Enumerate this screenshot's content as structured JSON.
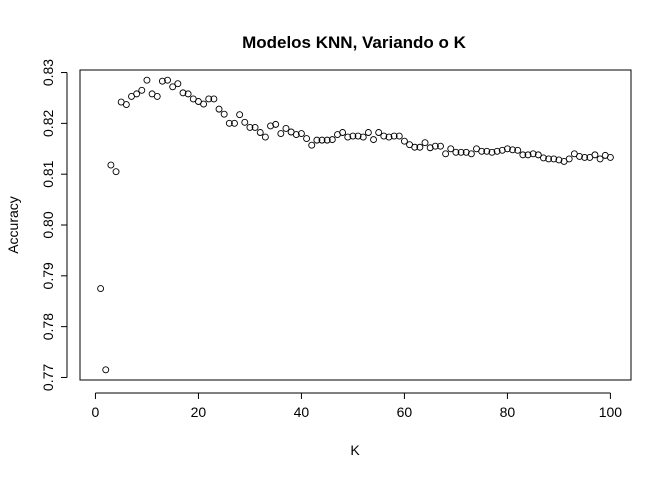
{
  "chart_data": {
    "type": "scatter",
    "title": "Modelos KNN, Variando o K",
    "xlabel": "K",
    "ylabel": "Accuracy",
    "xlim": [
      -3,
      104
    ],
    "ylim": [
      0.7695,
      0.8305
    ],
    "xticks": [
      0,
      20,
      40,
      60,
      80,
      100
    ],
    "yticks": [
      0.77,
      0.78,
      0.79,
      0.8,
      0.81,
      0.82,
      0.83
    ],
    "xtick_labels": [
      "0",
      "20",
      "40",
      "60",
      "80",
      "100"
    ],
    "ytick_labels": [
      "0.77",
      "0.78",
      "0.79",
      "0.80",
      "0.81",
      "0.82",
      "0.83"
    ],
    "grid": false,
    "marker": "open-circle",
    "x": [
      1,
      2,
      3,
      4,
      5,
      6,
      7,
      8,
      9,
      10,
      11,
      12,
      13,
      14,
      15,
      16,
      17,
      18,
      19,
      20,
      21,
      22,
      23,
      24,
      25,
      26,
      27,
      28,
      29,
      30,
      31,
      32,
      33,
      34,
      35,
      36,
      37,
      38,
      39,
      40,
      41,
      42,
      43,
      44,
      45,
      46,
      47,
      48,
      49,
      50,
      51,
      52,
      53,
      54,
      55,
      56,
      57,
      58,
      59,
      60,
      61,
      62,
      63,
      64,
      65,
      66,
      67,
      68,
      69,
      70,
      71,
      72,
      73,
      74,
      75,
      76,
      77,
      78,
      79,
      80,
      81,
      82,
      83,
      84,
      85,
      86,
      87,
      88,
      89,
      90,
      91,
      92,
      93,
      94,
      95,
      96,
      97,
      98,
      99,
      100
    ],
    "y": [
      0.7875,
      0.7715,
      0.8118,
      0.8105,
      0.8242,
      0.8237,
      0.8253,
      0.8258,
      0.8265,
      0.8285,
      0.8258,
      0.8253,
      0.8283,
      0.8285,
      0.8272,
      0.8278,
      0.826,
      0.8258,
      0.8248,
      0.8243,
      0.8238,
      0.8248,
      0.8248,
      0.8228,
      0.8218,
      0.82,
      0.82,
      0.8217,
      0.8202,
      0.8192,
      0.8192,
      0.8182,
      0.8173,
      0.8195,
      0.8198,
      0.818,
      0.819,
      0.8183,
      0.8178,
      0.818,
      0.817,
      0.8157,
      0.8167,
      0.8167,
      0.8167,
      0.8168,
      0.8178,
      0.8182,
      0.8173,
      0.8175,
      0.8175,
      0.8173,
      0.8182,
      0.8168,
      0.8182,
      0.8175,
      0.8173,
      0.8175,
      0.8175,
      0.8165,
      0.8158,
      0.8153,
      0.8153,
      0.8162,
      0.8152,
      0.8155,
      0.8155,
      0.814,
      0.815,
      0.8143,
      0.8143,
      0.8143,
      0.814,
      0.815,
      0.8145,
      0.8145,
      0.8143,
      0.8145,
      0.8147,
      0.815,
      0.8148,
      0.8147,
      0.8138,
      0.8138,
      0.814,
      0.8138,
      0.8132,
      0.813,
      0.813,
      0.8128,
      0.8125,
      0.813,
      0.814,
      0.8135,
      0.8133,
      0.8133,
      0.8138,
      0.813,
      0.8137,
      0.8133
    ]
  }
}
